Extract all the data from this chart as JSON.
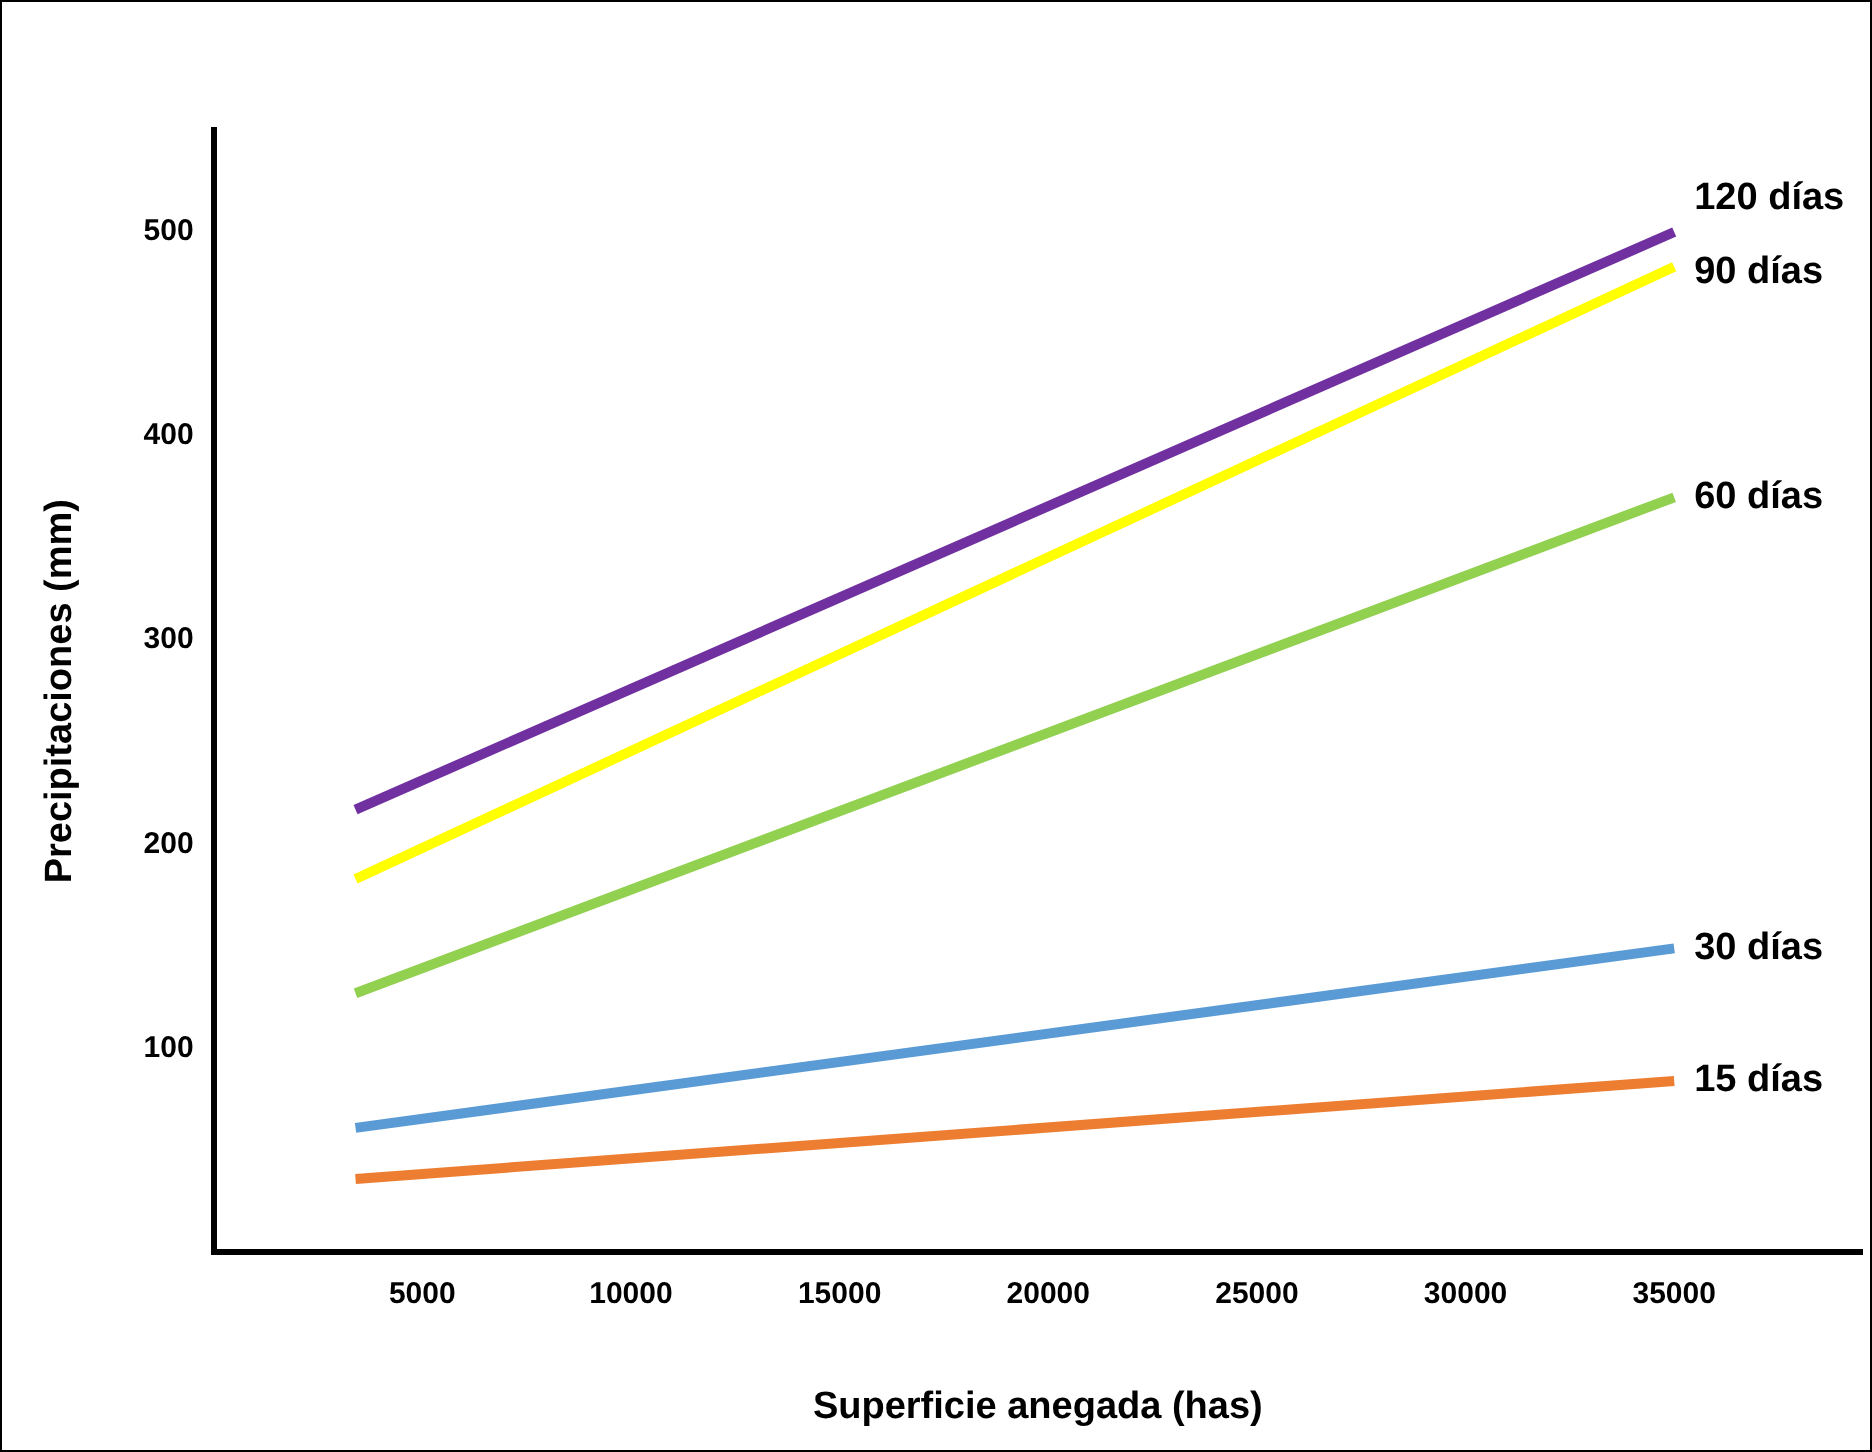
{
  "chart_data": {
    "type": "line",
    "xlabel": "Superficie anegada (has)",
    "ylabel": "Precipitaciones (mm)",
    "xlim": [
      0,
      39500
    ],
    "xticks": [
      5000,
      10000,
      15000,
      20000,
      25000,
      30000,
      35000
    ],
    "ylim": [
      0,
      550
    ],
    "yticks": [
      100,
      200,
      300,
      400,
      500
    ],
    "grid": false,
    "legend": false,
    "marker": "none",
    "line_style": "solid",
    "x": [
      3400,
      35000
    ],
    "series": [
      {
        "name": "120 días",
        "color": "#7030a0",
        "values": [
          217,
          500
        ]
      },
      {
        "name": "90 días",
        "color": "#ffff00",
        "values": [
          183,
          483
        ]
      },
      {
        "name": "60 días",
        "color": "#92d050",
        "values": [
          127,
          370
        ]
      },
      {
        "name": "30 días",
        "color": "#5b9bd5",
        "values": [
          61,
          149
        ]
      },
      {
        "name": "15 días",
        "color": "#ed7d31",
        "values": [
          36,
          84
        ]
      }
    ]
  }
}
